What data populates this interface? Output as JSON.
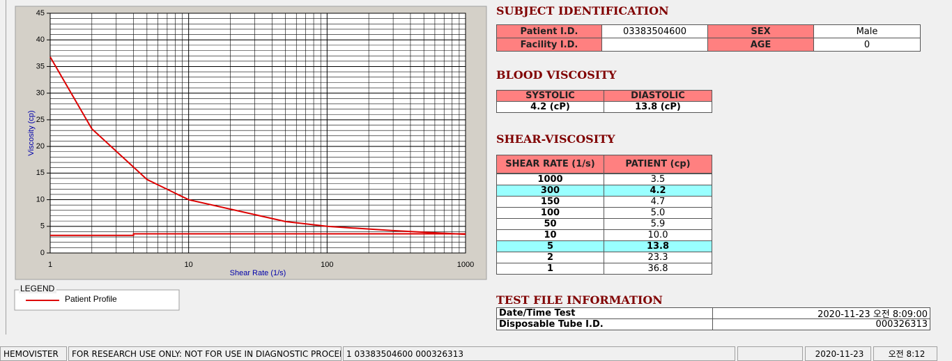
{
  "chart_data": {
    "type": "line",
    "xlabel": "Shear Rate (1/s)",
    "ylabel": "Viscosity (cp)",
    "xscale": "log",
    "xlim": [
      1,
      1000
    ],
    "ylim": [
      0,
      45
    ],
    "xticks": [
      1,
      10,
      100,
      1000
    ],
    "yticks": [
      0,
      5,
      10,
      15,
      20,
      25,
      30,
      35,
      40,
      45
    ],
    "grid": true,
    "legend_title": "LEGEND",
    "series": [
      {
        "name": "Patient Profile",
        "color": "#dd0000",
        "x": [
          1,
          2,
          5,
          10,
          50,
          100,
          150,
          300,
          1000
        ],
        "values": [
          36.8,
          23.3,
          13.8,
          10.0,
          5.9,
          5.0,
          4.7,
          4.2,
          3.5
        ]
      },
      {
        "color": "#dd0000",
        "x": [
          1,
          4,
          4,
          1000
        ],
        "values": [
          3.3,
          3.3,
          3.6,
          3.6
        ]
      }
    ]
  },
  "subject_identification": {
    "title": "SUBJECT IDENTIFICATION",
    "fields": [
      {
        "label": "Patient I.D.",
        "value": "03383504600"
      },
      {
        "label": "SEX",
        "value": "Male"
      },
      {
        "label": "Facility I.D."
      },
      {
        "label": "AGE",
        "value": 0
      }
    ]
  },
  "blood_viscosity": {
    "title": "BLOOD VISCOSITY",
    "headers": [
      "SYSTOLIC",
      "DIASTOLIC"
    ],
    "values": [
      "4.2 (cP)",
      "13.8 (cP)"
    ]
  },
  "shear_viscosity": {
    "title": "SHEAR-VISCOSITY",
    "headers": [
      "SHEAR RATE (1/s)",
      "PATIENT (cp)"
    ],
    "rows": [
      {
        "shear_rate": 1000,
        "patient": "3.5"
      },
      {
        "shear_rate": 300,
        "patient": "4.2",
        "highlight": true
      },
      {
        "shear_rate": 150,
        "patient": "4.7"
      },
      {
        "shear_rate": 100,
        "patient": "5.0"
      },
      {
        "shear_rate": 50,
        "patient": "5.9"
      },
      {
        "shear_rate": 10,
        "patient": "10.0"
      },
      {
        "shear_rate": 5,
        "patient": "13.8",
        "highlight": true
      },
      {
        "shear_rate": 2,
        "patient": "23.3"
      },
      {
        "shear_rate": 1,
        "patient": "36.8"
      }
    ]
  },
  "test_file_information": {
    "title": "TEST FILE INFORMATION",
    "rows": [
      {
        "label": "Date/Time Test",
        "value": "2020-11-23   오전 8:09:00"
      },
      {
        "label": "Disposable Tube I.D.",
        "value": "000326313"
      }
    ]
  },
  "status_bar": [
    "HEMOVISTER",
    "FOR RESEARCH USE ONLY: NOT FOR USE IN DIAGNOSTIC PROCEDURES",
    "1  03383504600  000326313",
    "2020-11-23",
    "오전 8:12"
  ]
}
